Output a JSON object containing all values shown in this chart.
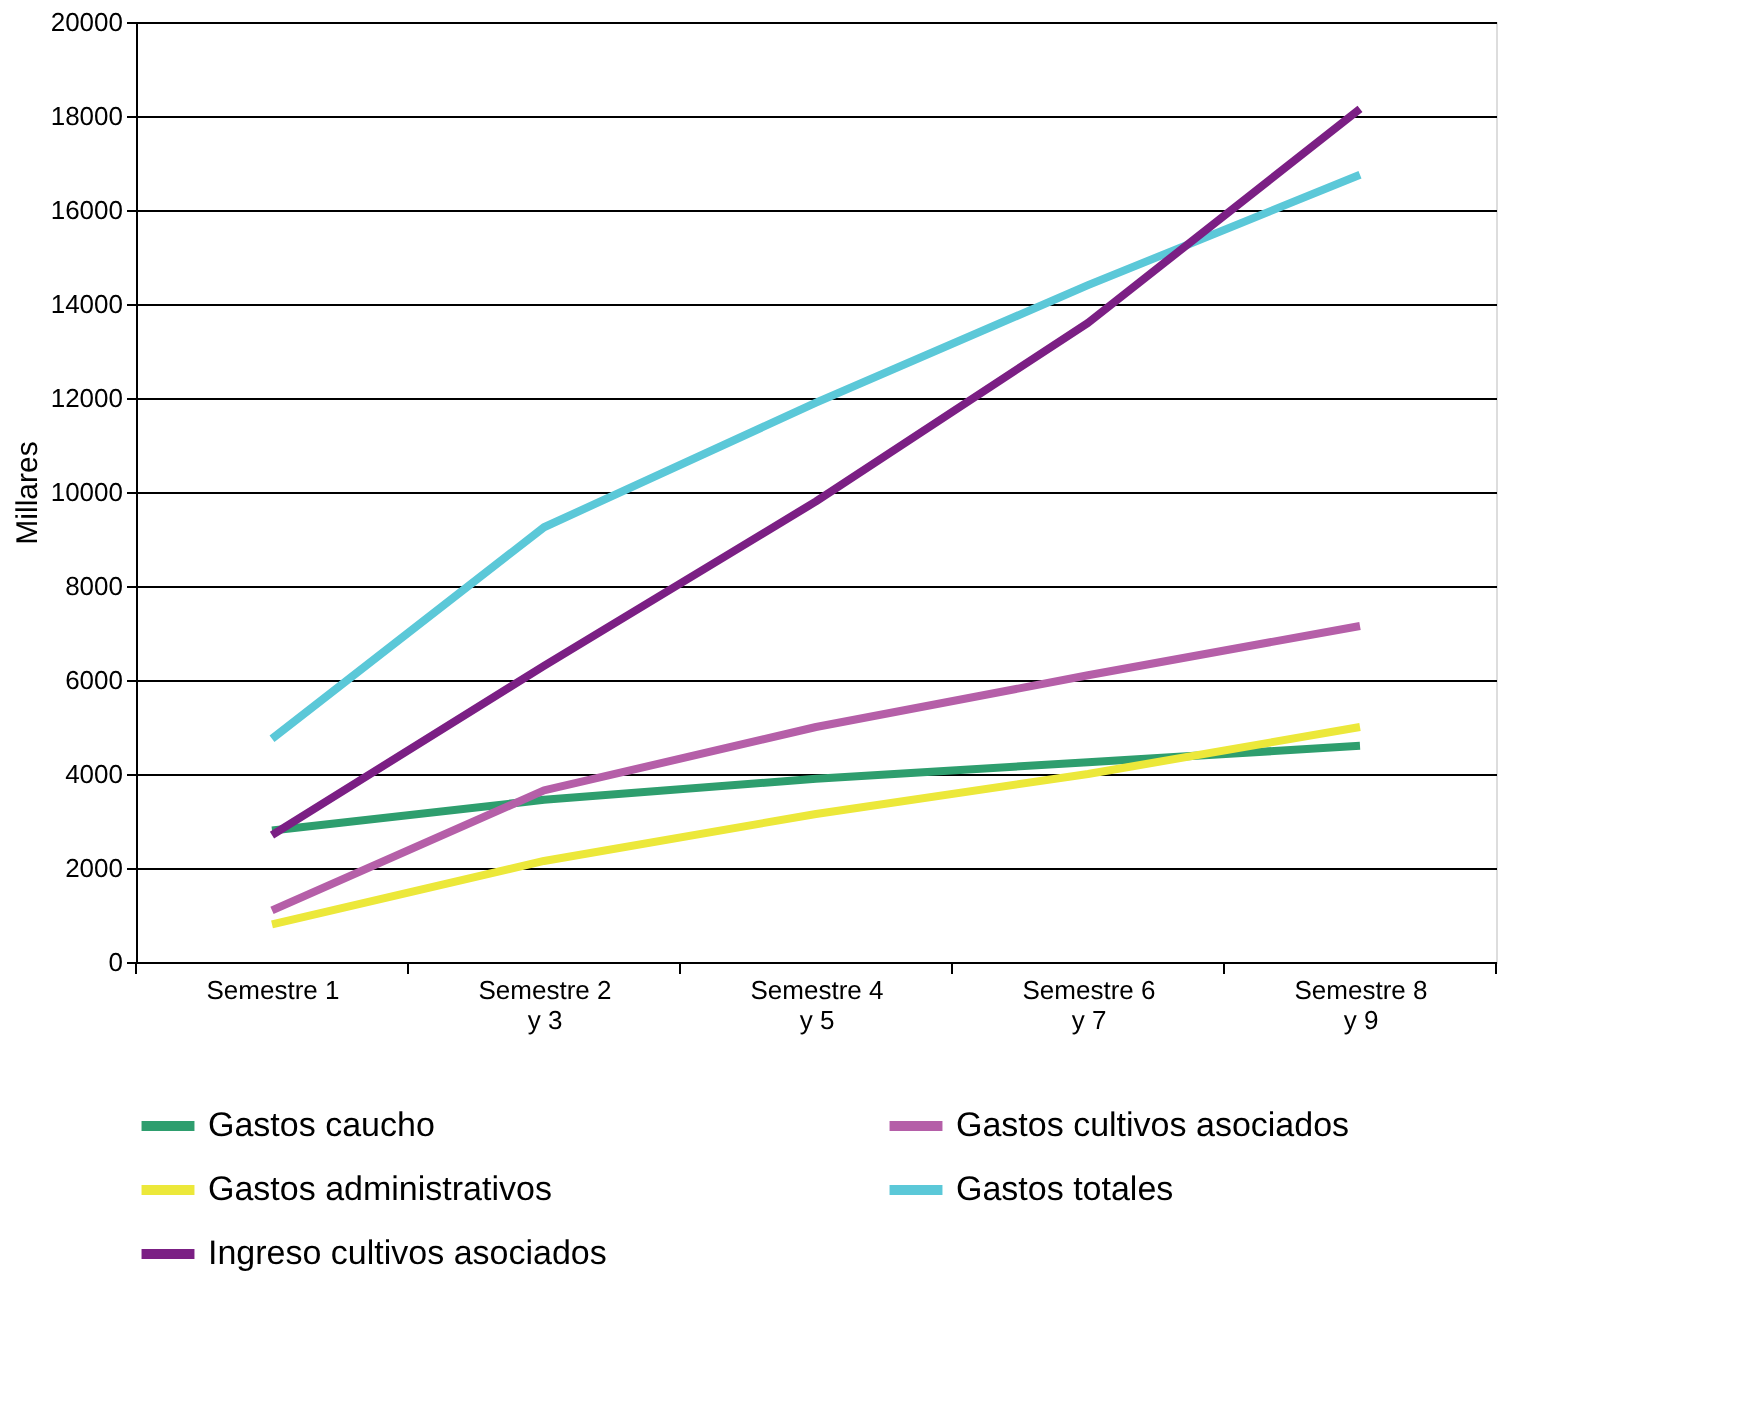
{
  "chart_data": {
    "type": "line",
    "ylabel": "Millares",
    "categories": [
      "Semestre 1",
      "Semestre 2\ny 3",
      "Semestre 4\ny 5",
      "Semestre 6\ny 7",
      "Semestre 8\ny 9"
    ],
    "series": [
      {
        "name": "Gastos caucho",
        "color": "#2e9e6e",
        "values": [
          2800,
          3450,
          3900,
          4250,
          4600
        ]
      },
      {
        "name": "Gastos cultivos asociados",
        "color": "#b55fa8",
        "values": [
          1100,
          3650,
          5000,
          6100,
          7150
        ]
      },
      {
        "name": "Gastos administrativos",
        "color": "#ece83a",
        "values": [
          800,
          2150,
          3150,
          4000,
          5000
        ]
      },
      {
        "name": "Gastos totales",
        "color": "#5bc8d8",
        "values": [
          4750,
          9250,
          11900,
          14400,
          16750
        ]
      },
      {
        "name": "Ingreso cultivos asociados",
        "color": "#7b1f84",
        "values": [
          2700,
          6300,
          9800,
          13600,
          18150
        ]
      }
    ],
    "ylim": [
      0,
      20000
    ],
    "yticks": [
      0,
      2000,
      4000,
      6000,
      8000,
      10000,
      12000,
      14000,
      16000,
      18000,
      20000
    ],
    "grid": "y",
    "legend": "bottom",
    "marker": "none",
    "line_style": "solid"
  }
}
